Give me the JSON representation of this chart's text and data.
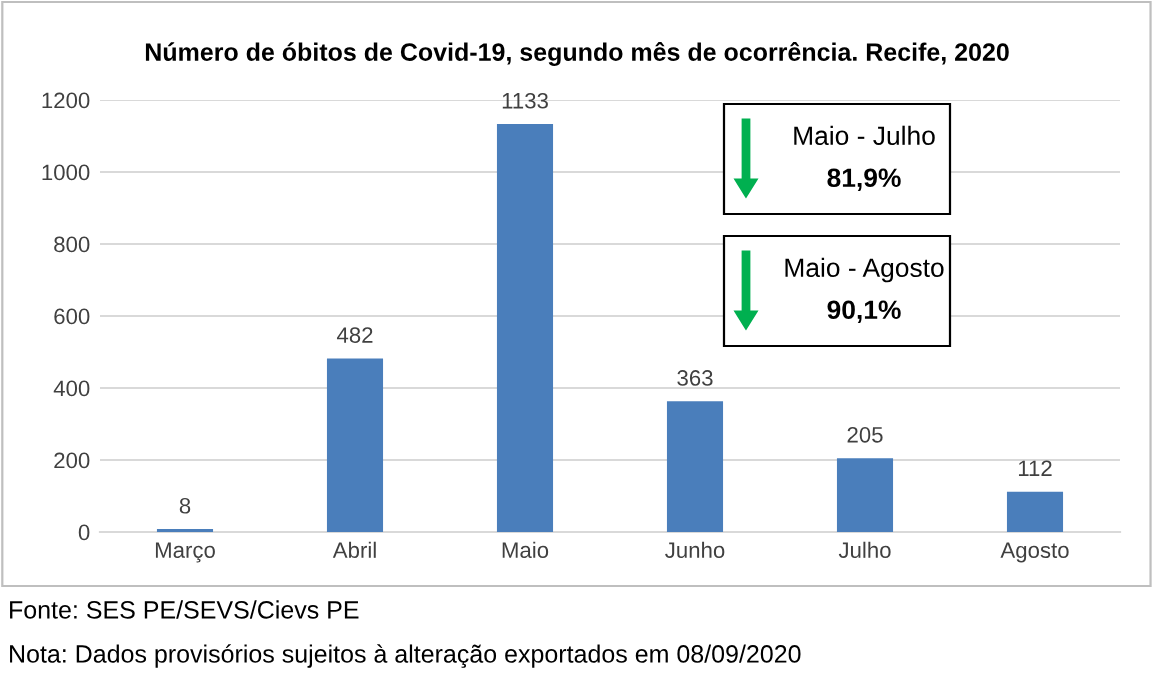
{
  "chart_data": {
    "type": "bar",
    "title": "Número de óbitos de Covid-19, segundo mês de ocorrência. Recife, 2020",
    "categories": [
      "Março",
      "Abril",
      "Maio",
      "Junho",
      "Julho",
      "Agosto"
    ],
    "values": [
      8,
      482,
      1133,
      363,
      205,
      112
    ],
    "color": "#4a7ebb",
    "ylim": [
      0,
      1200
    ],
    "yticks": [
      0,
      200,
      400,
      600,
      800,
      1000,
      1200
    ],
    "grid": "y",
    "data_labels": true,
    "annotations": [
      "Maio - Julho",
      "81,9%",
      "Maio - Agosto",
      "90,1%",
      "Fonte: SES PE/SEVS/Cievs PE",
      "Nota: Dados provisórios sujeitos à alteração exportados em 08/09/2020"
    ]
  }
}
